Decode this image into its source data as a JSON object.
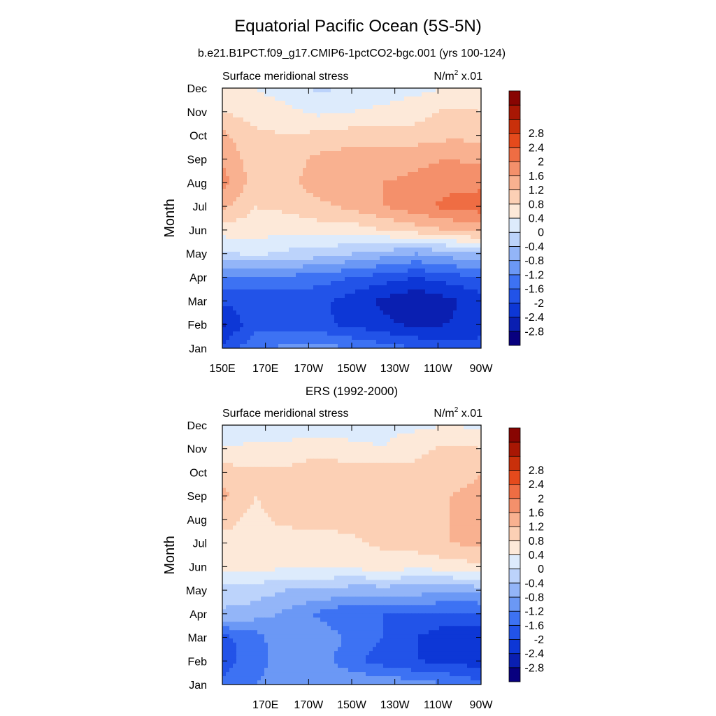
{
  "figure": {
    "title": "Equatorial Pacific Ocean (5S-5N)",
    "subtitle": "b.e21.B1PCT.f09_g17.CMIP6-1pctCO2-bgc.001 (yrs 100-124)"
  },
  "colorbar": {
    "colors": [
      "#08007f",
      "#0a1fb1",
      "#0d37d6",
      "#2253e8",
      "#3d72f3",
      "#6b98f5",
      "#93b5f8",
      "#bcd3fb",
      "#ddebfc",
      "#fde9d9",
      "#fcd0b5",
      "#f9b190",
      "#f4906b",
      "#ef6d43",
      "#e54a1c",
      "#c9300b",
      "#a81704",
      "#880502"
    ],
    "labels": [
      "-2.8",
      "-2.4",
      "-2",
      "-1.6",
      "-1.2",
      "-0.8",
      "-0.4",
      "0",
      "0.4",
      "0.8",
      "1.2",
      "1.6",
      "2",
      "2.4",
      "2.8"
    ]
  },
  "chart_data": [
    {
      "type": "heatmap",
      "title": "",
      "left_string": "Surface meridional stress",
      "units": "N/m",
      "units_sup": "2",
      "units_scale": " x.01",
      "ylabel": "Month",
      "x_tick_labels": [
        "150E",
        "170E",
        "170W",
        "150W",
        "130W",
        "110W",
        "90W"
      ],
      "x_tick_lons": [
        150,
        170,
        190,
        210,
        230,
        250,
        270
      ],
      "xlim": [
        150,
        270
      ],
      "y_tick_labels": [
        "Jan",
        "Feb",
        "Mar",
        "Apr",
        "May",
        "Jun",
        "Jul",
        "Aug",
        "Sep",
        "Oct",
        "Nov",
        "Dec"
      ],
      "ylim": [
        0,
        11
      ],
      "contour_levels": [
        -2.8,
        -2.4,
        -2,
        -1.6,
        -1.2,
        -0.8,
        -0.4,
        0,
        0.4,
        0.8,
        1.2,
        1.6,
        2,
        2.4,
        2.8
      ],
      "lon": [
        150,
        165,
        180,
        195,
        210,
        225,
        240,
        255,
        270
      ],
      "months": [
        "Jan",
        "Feb",
        "Mar",
        "Apr",
        "May",
        "Jun",
        "Jul",
        "Aug",
        "Sep",
        "Oct",
        "Nov",
        "Dec"
      ],
      "values": [
        [
          -1.9,
          -1.3,
          -1.1,
          -1.0,
          -1.2,
          -1.4,
          -1.6,
          -1.8,
          -1.9
        ],
        [
          -2.5,
          -1.7,
          -1.8,
          -1.9,
          -2.1,
          -2.3,
          -2.5,
          -2.4,
          -2.1
        ],
        [
          -1.9,
          -1.8,
          -1.9,
          -1.9,
          -2.2,
          -2.5,
          -2.8,
          -2.5,
          -2.2
        ],
        [
          -1.3,
          -1.3,
          -1.3,
          -1.4,
          -1.6,
          -1.8,
          -2.0,
          -1.8,
          -1.6
        ],
        [
          -0.1,
          0.1,
          -0.1,
          -0.2,
          -0.4,
          -0.6,
          -0.8,
          -0.6,
          -0.4
        ],
        [
          0.6,
          0.6,
          0.5,
          0.6,
          0.6,
          0.8,
          1.0,
          1.2,
          1.4
        ],
        [
          1.3,
          0.8,
          0.9,
          1.1,
          1.3,
          1.6,
          1.9,
          2.1,
          2.2
        ],
        [
          1.8,
          1.0,
          1.1,
          1.4,
          1.5,
          1.6,
          1.7,
          1.9,
          1.9
        ],
        [
          1.5,
          1.0,
          1.0,
          1.3,
          1.4,
          1.4,
          1.5,
          1.6,
          1.5
        ],
        [
          1.3,
          0.9,
          0.8,
          0.9,
          1.0,
          1.0,
          1.0,
          1.1,
          1.1
        ],
        [
          0.8,
          0.6,
          0.5,
          0.3,
          0.4,
          0.5,
          0.6,
          0.9,
          0.8
        ],
        [
          0.4,
          0.4,
          0.2,
          -0.1,
          0.1,
          0.2,
          0.3,
          0.4,
          0.4
        ]
      ]
    },
    {
      "type": "heatmap",
      "title": "ERS (1992-2000)",
      "left_string": "Surface meridional stress",
      "units": "N/m",
      "units_sup": "2",
      "units_scale": " x.01",
      "ylabel": "Month",
      "x_tick_labels": [
        "170E",
        "170W",
        "150W",
        "130W",
        "110W",
        "90W"
      ],
      "x_tick_lons": [
        170,
        190,
        210,
        230,
        250,
        270
      ],
      "xlim": [
        150,
        270
      ],
      "y_tick_labels": [
        "Jan",
        "Feb",
        "Mar",
        "Apr",
        "May",
        "Jun",
        "Jul",
        "Aug",
        "Sep",
        "Oct",
        "Nov",
        "Dec"
      ],
      "ylim": [
        0,
        11
      ],
      "contour_levels": [
        -2.8,
        -2.4,
        -2,
        -1.6,
        -1.2,
        -0.8,
        -0.4,
        0,
        0.4,
        0.8,
        1.2,
        1.6,
        2,
        2.4,
        2.8
      ],
      "lon": [
        150,
        165,
        180,
        195,
        210,
        225,
        240,
        255,
        270
      ],
      "months": [
        "Jan",
        "Feb",
        "Mar",
        "Apr",
        "May",
        "Jun",
        "Jul",
        "Aug",
        "Sep",
        "Oct",
        "Nov",
        "Dec"
      ],
      "values": [
        [
          -1.5,
          -1.2,
          -1.0,
          -0.9,
          -0.8,
          -0.9,
          -1.0,
          -1.2,
          -1.5
        ],
        [
          -1.8,
          -1.4,
          -0.9,
          -1.0,
          -1.5,
          -1.8,
          -2.0,
          -2.1,
          -2.2
        ],
        [
          -1.7,
          -1.4,
          -0.8,
          -0.9,
          -1.3,
          -1.6,
          -2.0,
          -2.3,
          -2.3
        ],
        [
          -0.5,
          -0.6,
          -0.9,
          -1.3,
          -1.6,
          -1.6,
          -1.6,
          -1.7,
          -1.7
        ],
        [
          -0.1,
          -0.2,
          -0.4,
          -0.4,
          -0.6,
          -0.6,
          -0.6,
          -0.7,
          -0.6
        ],
        [
          0.5,
          0.5,
          0.5,
          0.4,
          0.5,
          0.6,
          0.5,
          0.6,
          0.7
        ],
        [
          0.7,
          0.8,
          0.6,
          0.5,
          0.7,
          0.9,
          1.0,
          1.2,
          1.3
        ],
        [
          0.9,
          0.7,
          0.9,
          1.0,
          1.0,
          1.0,
          1.1,
          1.2,
          1.3
        ],
        [
          1.3,
          0.8,
          1.0,
          1.0,
          1.0,
          0.9,
          1.0,
          1.2,
          1.3
        ],
        [
          1.0,
          0.9,
          0.9,
          1.0,
          1.0,
          1.0,
          0.9,
          1.0,
          1.2
        ],
        [
          0.4,
          0.5,
          0.5,
          0.7,
          0.5,
          0.4,
          0.7,
          0.9,
          0.8
        ],
        [
          0.2,
          0.1,
          0.2,
          0.1,
          0.2,
          0.3,
          0.3,
          0.4,
          0.3
        ]
      ]
    }
  ]
}
